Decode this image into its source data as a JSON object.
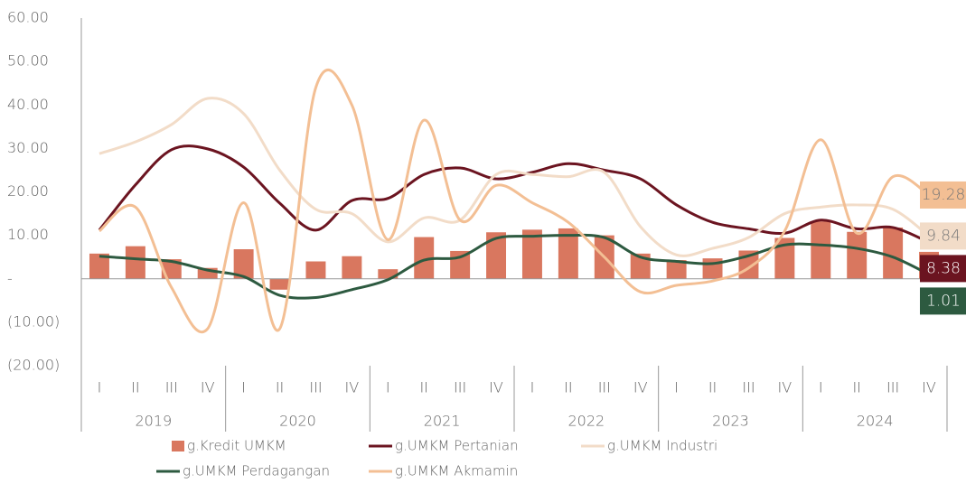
{
  "chart_data": {
    "type": "bar-line",
    "categories": [
      "I",
      "II",
      "III",
      "IV",
      "I",
      "II",
      "III",
      "IV",
      "I",
      "II",
      "III",
      "IV",
      "I",
      "II",
      "III",
      "IV",
      "I",
      "II",
      "III",
      "IV",
      "I",
      "II",
      "III",
      "IV"
    ],
    "year_groups": [
      "2019",
      "2020",
      "2021",
      "2022",
      "2023",
      "2024"
    ],
    "series": [
      {
        "name": "g.Kredit UMKM",
        "type": "bar",
        "color": "#d9775f",
        "values": [
          5.8,
          7.5,
          4.5,
          2.5,
          6.8,
          -2.5,
          4.0,
          5.2,
          2.2,
          9.6,
          6.4,
          10.7,
          11.3,
          11.6,
          10.0,
          5.8,
          4.3,
          4.7,
          6.5,
          9.4,
          13.2,
          10.8,
          11.8,
          6.2
        ]
      },
      {
        "name": "g.UMKM Pertanian",
        "type": "line",
        "color": "#6b1420",
        "end_label": true,
        "values": [
          11.2,
          21.6,
          29.7,
          29.9,
          25.7,
          17.4,
          11.2,
          18.0,
          18.5,
          24.0,
          25.5,
          23.0,
          24.5,
          26.5,
          25.0,
          23.0,
          17.0,
          13.0,
          11.5,
          10.5,
          13.5,
          11.5,
          11.8,
          8.38
        ]
      },
      {
        "name": "g.UMKM Industri",
        "type": "line",
        "color": "#f2dcc8",
        "end_label": true,
        "values": [
          28.8,
          31.5,
          35.5,
          41.5,
          38.0,
          25.0,
          16.0,
          15.0,
          8.5,
          14.0,
          13.5,
          24.0,
          24.0,
          23.5,
          24.5,
          12.0,
          5.5,
          7.0,
          9.5,
          15.0,
          16.5,
          17.0,
          16.0,
          9.84
        ]
      },
      {
        "name": "g.UMKM Perdagangan",
        "type": "line",
        "color": "#2d5a40",
        "end_label": true,
        "values": [
          5.2,
          4.6,
          4.0,
          2.0,
          0.5,
          -3.8,
          -4.3,
          -2.5,
          -0.2,
          4.3,
          5.0,
          9.3,
          9.8,
          10.0,
          9.5,
          5.0,
          4.0,
          3.5,
          5.3,
          7.8,
          7.8,
          7.0,
          5.0,
          1.01
        ]
      },
      {
        "name": "g.UMKM Akmamin",
        "type": "line",
        "color": "#f3bf94",
        "end_label": true,
        "values": [
          11.0,
          16.5,
          -2.0,
          -11.5,
          17.5,
          -11.5,
          44.0,
          40.0,
          9.0,
          36.5,
          13.5,
          21.5,
          17.5,
          13.0,
          5.0,
          -3.0,
          -1.5,
          -0.5,
          2.5,
          11.0,
          32.0,
          10.5,
          23.5,
          19.28
        ]
      }
    ],
    "ylim": [
      -20,
      60
    ],
    "yticks": [
      {
        "value": 60,
        "label": "60.00"
      },
      {
        "value": 50,
        "label": "50.00"
      },
      {
        "value": 40,
        "label": "40.00"
      },
      {
        "value": 30,
        "label": "30.00"
      },
      {
        "value": 20,
        "label": "20.00"
      },
      {
        "value": 10,
        "label": "10.00"
      },
      {
        "value": 0,
        "label": "-"
      },
      {
        "value": -10,
        "label": "(10.00)"
      },
      {
        "value": -20,
        "label": "(20.00)"
      }
    ],
    "grid": false
  }
}
